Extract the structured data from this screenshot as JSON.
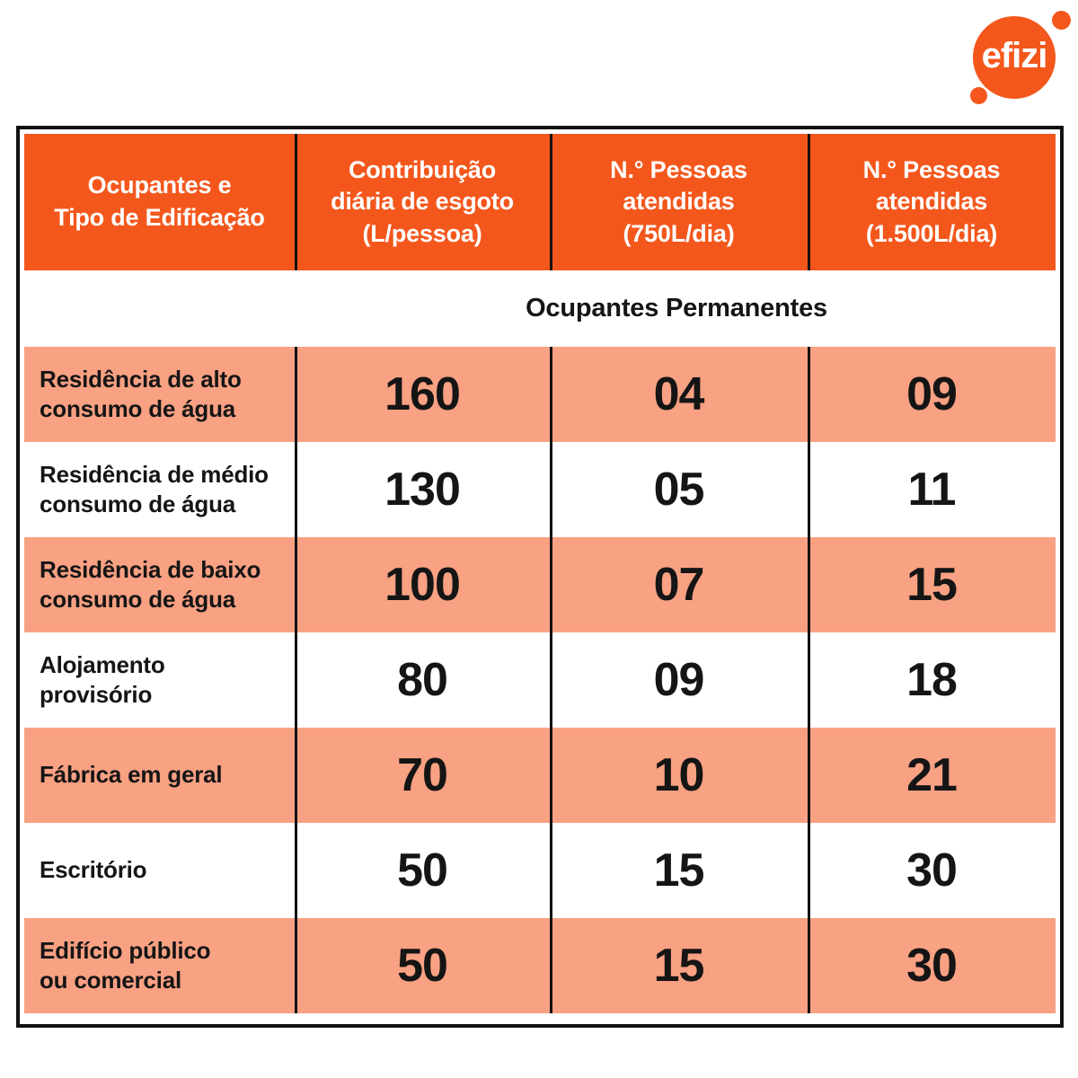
{
  "logo": {
    "text": "efizi"
  },
  "colors": {
    "orange": "#F4571C",
    "salmon": "#F9A183",
    "text": "#151515",
    "border": "#111111"
  },
  "table": {
    "headers": [
      "Ocupantes e\nTipo de Edificação",
      "Contribuição\ndiária de esgoto\n(L/pessoa)",
      "N.° Pessoas\natendidas\n(750L/dia)",
      "N.° Pessoas\natendidas\n(1.500L/dia)"
    ],
    "section_label": "Ocupantes Permanentes",
    "rows": [
      {
        "label": "Residência de alto\nconsumo de água",
        "contribution": "160",
        "served_750": "04",
        "served_1500": "09"
      },
      {
        "label": "Residência de médio\nconsumo de água",
        "contribution": "130",
        "served_750": "05",
        "served_1500": "11"
      },
      {
        "label": "Residência de baixo\nconsumo de água",
        "contribution": "100",
        "served_750": "07",
        "served_1500": "15"
      },
      {
        "label": "Alojamento\nprovisório",
        "contribution": "80",
        "served_750": "09",
        "served_1500": "18"
      },
      {
        "label": "Fábrica em geral",
        "contribution": "70",
        "served_750": "10",
        "served_1500": "21"
      },
      {
        "label": "Escritório",
        "contribution": "50",
        "served_750": "15",
        "served_1500": "30"
      },
      {
        "label": "Edifício público\nou comercial",
        "contribution": "50",
        "served_750": "15",
        "served_1500": "30"
      }
    ]
  },
  "chart_data": {
    "type": "table",
    "title": "Ocupantes Permanentes",
    "columns": [
      "Ocupantes e Tipo de Edificação",
      "Contribuição diária de esgoto (L/pessoa)",
      "N.° Pessoas atendidas (750L/dia)",
      "N.° Pessoas atendidas (1.500L/dia)"
    ],
    "rows": [
      [
        "Residência de alto consumo de água",
        160,
        4,
        9
      ],
      [
        "Residência de médio consumo de água",
        130,
        5,
        11
      ],
      [
        "Residência de baixo consumo de água",
        100,
        7,
        15
      ],
      [
        "Alojamento provisório",
        80,
        9,
        18
      ],
      [
        "Fábrica em geral",
        70,
        10,
        21
      ],
      [
        "Escritório",
        50,
        15,
        30
      ],
      [
        "Edifício público ou comercial",
        50,
        15,
        30
      ]
    ]
  }
}
